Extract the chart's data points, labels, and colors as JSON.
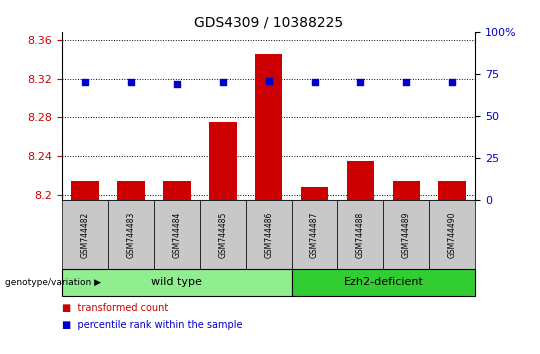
{
  "title": "GDS4309 / 10388225",
  "samples": [
    "GSM744482",
    "GSM744483",
    "GSM744484",
    "GSM744485",
    "GSM744486",
    "GSM744487",
    "GSM744488",
    "GSM744489",
    "GSM744490"
  ],
  "transformed_counts": [
    8.215,
    8.215,
    8.215,
    8.275,
    8.345,
    8.208,
    8.235,
    8.215,
    8.215
  ],
  "percentile_ranks": [
    70,
    70,
    69,
    70,
    71,
    70,
    70,
    70,
    70
  ],
  "ylim_left": [
    8.195,
    8.368
  ],
  "ylim_right": [
    0,
    100
  ],
  "yticks_left": [
    8.2,
    8.24,
    8.28,
    8.32,
    8.36
  ],
  "ytick_labels_left": [
    "8.2",
    "8.24",
    "8.28",
    "8.32",
    "8.36"
  ],
  "yticks_right": [
    0,
    25,
    50,
    75,
    100
  ],
  "ytick_labels_right": [
    "0",
    "25",
    "50",
    "75",
    "100%"
  ],
  "bar_color": "#cc0000",
  "dot_color": "#0000cc",
  "bar_width": 0.6,
  "groups": [
    {
      "label": "wild type",
      "indices": [
        0,
        1,
        2,
        3,
        4
      ],
      "color": "#90ee90"
    },
    {
      "label": "Ezh2-deficient",
      "indices": [
        5,
        6,
        7,
        8
      ],
      "color": "#32cd32"
    }
  ],
  "group_label": "genotype/variation",
  "legend_bar_label": "transformed count",
  "legend_dot_label": "percentile rank within the sample",
  "dotted_line_color": "#000000",
  "background_color": "#ffffff",
  "left_tick_color": "#cc0000",
  "right_tick_color": "#0000cc",
  "xlabel_tick_bg": "#c8c8c8"
}
